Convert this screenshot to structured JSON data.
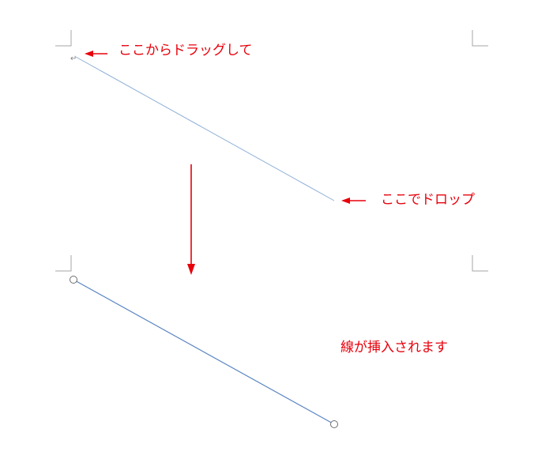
{
  "annotations": {
    "drag_from": "ここからドラッグして",
    "drop_here": "ここでドロップ",
    "line_inserted": "線が挿入されます"
  },
  "glyphs": {
    "paragraph_mark": "↵"
  },
  "colors": {
    "annotation_red": "#e8000b",
    "preview_line": "#8fb0d8",
    "inserted_line": "#5b86c2",
    "handle_stroke": "#6e6e6e",
    "margin_mark": "#a6a6a6"
  },
  "icons": {
    "arrow_to_start": "left-arrow-icon",
    "arrow_to_drop": "left-arrow-icon",
    "step_arrow": "down-arrow-icon",
    "line_handle": "circle-handle-icon"
  }
}
